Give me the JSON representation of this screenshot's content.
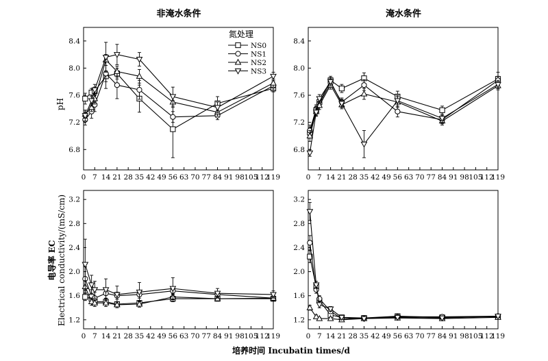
{
  "figure": {
    "x_axis_label": "培养时间 Incubatin times/d",
    "y_label_top": "pH",
    "y_label_bottom_cn": "电导率 EC",
    "y_label_bottom_en": "Electrical conductivity/(mS/cm)",
    "legend_title": "氮处理"
  },
  "chart_data": [
    {
      "type": "line",
      "panel": "top-left",
      "title": "非淹水条件",
      "ylabel": "pH",
      "xlabel": "",
      "x": [
        1,
        5,
        7,
        14,
        21,
        35,
        56,
        84,
        119
      ],
      "x_ticks": [
        0,
        7,
        14,
        21,
        28,
        35,
        42,
        49,
        56,
        63,
        70,
        77,
        84,
        91,
        98,
        105,
        112,
        119
      ],
      "ylim": [
        6.5,
        8.6
      ],
      "y_ticks": [
        6.8,
        7.2,
        7.6,
        8.0,
        8.4
      ],
      "legend": "top-right",
      "series": [
        {
          "name": "NS0",
          "marker": "square",
          "values": [
            7.55,
            7.64,
            7.66,
            7.88,
            7.92,
            7.55,
            7.1,
            7.48,
            7.7
          ],
          "errors": [
            0.08,
            0.06,
            0.06,
            0.08,
            0.08,
            0.2,
            0.42,
            0.1,
            0.05
          ]
        },
        {
          "name": "NS1",
          "marker": "circle",
          "values": [
            7.24,
            7.36,
            7.46,
            7.92,
            7.75,
            7.68,
            7.28,
            7.3,
            7.74
          ],
          "errors": [
            0.08,
            0.1,
            0.1,
            0.22,
            0.2,
            0.14,
            0.08,
            0.06,
            0.06
          ]
        },
        {
          "name": "NS2",
          "marker": "triangle-up",
          "values": [
            7.32,
            7.42,
            7.55,
            8.12,
            7.95,
            7.88,
            7.5,
            7.35,
            7.78
          ],
          "errors": [
            0.06,
            0.06,
            0.08,
            0.08,
            0.08,
            0.1,
            0.08,
            0.06,
            0.06
          ]
        },
        {
          "name": "NS3",
          "marker": "triangle-down",
          "values": [
            7.3,
            7.52,
            7.68,
            8.16,
            8.2,
            8.13,
            7.58,
            7.42,
            7.88
          ],
          "errors": [
            0.08,
            0.08,
            0.08,
            0.22,
            0.15,
            0.1,
            0.14,
            0.08,
            0.06
          ]
        }
      ]
    },
    {
      "type": "line",
      "panel": "top-right",
      "title": "淹水条件",
      "ylabel": "",
      "xlabel": "",
      "x": [
        1,
        5,
        7,
        14,
        21,
        35,
        56,
        84,
        119
      ],
      "x_ticks": [
        0,
        7,
        14,
        21,
        28,
        35,
        42,
        49,
        56,
        63,
        70,
        77,
        84,
        91,
        98,
        105,
        112,
        119
      ],
      "ylim": [
        6.5,
        8.6
      ],
      "y_ticks": [
        6.8,
        7.2,
        7.6,
        8.0,
        8.4
      ],
      "series": [
        {
          "name": "NS0",
          "marker": "square",
          "values": [
            7.05,
            7.38,
            7.5,
            7.82,
            7.7,
            7.85,
            7.58,
            7.38,
            7.84
          ],
          "errors": [
            0.08,
            0.06,
            0.06,
            0.06,
            0.06,
            0.08,
            0.08,
            0.06,
            0.1
          ]
        },
        {
          "name": "NS1",
          "marker": "circle",
          "values": [
            7.08,
            7.4,
            7.48,
            7.78,
            7.5,
            7.75,
            7.36,
            7.24,
            7.82
          ],
          "errors": [
            0.08,
            0.06,
            0.06,
            0.06,
            0.06,
            0.08,
            0.08,
            0.06,
            0.06
          ]
        },
        {
          "name": "NS2",
          "marker": "triangle-up",
          "values": [
            7.0,
            7.36,
            7.45,
            7.75,
            7.46,
            7.62,
            7.5,
            7.22,
            7.74
          ],
          "errors": [
            0.08,
            0.06,
            0.06,
            0.06,
            0.06,
            0.08,
            0.08,
            0.06,
            0.06
          ]
        },
        {
          "name": "NS3",
          "marker": "triangle-down",
          "values": [
            6.75,
            7.35,
            7.55,
            7.8,
            7.48,
            6.88,
            7.52,
            7.26,
            7.76
          ],
          "errors": [
            0.05,
            0.06,
            0.06,
            0.06,
            0.06,
            0.2,
            0.08,
            0.06,
            0.06
          ]
        }
      ]
    },
    {
      "type": "line",
      "panel": "bottom-left",
      "title": "",
      "ylabel": "电导率 EC Electrical conductivity/(mS/cm)",
      "xlabel": "培养时间 Incubatin times/d",
      "x": [
        1,
        5,
        7,
        14,
        21,
        35,
        56,
        84,
        119
      ],
      "x_ticks": [
        0,
        7,
        14,
        21,
        28,
        35,
        42,
        49,
        56,
        63,
        70,
        77,
        84,
        91,
        98,
        105,
        112,
        119
      ],
      "ylim": [
        1.05,
        3.35
      ],
      "y_ticks": [
        1.2,
        1.6,
        2.0,
        2.4,
        2.8,
        3.2
      ],
      "series": [
        {
          "name": "NS0",
          "marker": "square",
          "values": [
            1.58,
            1.55,
            1.5,
            1.5,
            1.46,
            1.48,
            1.55,
            1.55,
            1.55
          ],
          "errors": [
            0.06,
            0.05,
            0.05,
            0.05,
            0.04,
            0.04,
            0.05,
            0.04,
            0.04
          ]
        },
        {
          "name": "NS1",
          "marker": "circle",
          "values": [
            1.88,
            1.6,
            1.56,
            1.64,
            1.6,
            1.62,
            1.68,
            1.62,
            1.56
          ],
          "errors": [
            0.2,
            0.1,
            0.1,
            0.08,
            0.06,
            0.06,
            0.06,
            0.05,
            0.05
          ]
        },
        {
          "name": "NS2",
          "marker": "triangle-up",
          "values": [
            1.75,
            1.5,
            1.48,
            1.48,
            1.45,
            1.46,
            1.58,
            1.55,
            1.56
          ],
          "errors": [
            0.1,
            0.06,
            0.06,
            0.06,
            0.05,
            0.05,
            0.05,
            0.04,
            0.04
          ]
        },
        {
          "name": "NS3",
          "marker": "triangle-down",
          "values": [
            2.12,
            1.78,
            1.7,
            1.7,
            1.62,
            1.66,
            1.72,
            1.64,
            1.62
          ],
          "errors": [
            0.42,
            0.16,
            0.14,
            0.18,
            0.14,
            0.16,
            0.18,
            0.08,
            0.06
          ]
        }
      ]
    },
    {
      "type": "line",
      "panel": "bottom-right",
      "title": "",
      "ylabel": "",
      "xlabel": "培养时间 Incubatin times/d",
      "x": [
        1,
        5,
        7,
        14,
        21,
        35,
        56,
        84,
        119
      ],
      "x_ticks": [
        0,
        7,
        14,
        21,
        28,
        35,
        42,
        49,
        56,
        63,
        70,
        77,
        84,
        91,
        98,
        105,
        112,
        119
      ],
      "ylim": [
        1.05,
        3.35
      ],
      "y_ticks": [
        1.2,
        1.6,
        2.0,
        2.4,
        2.8,
        3.2
      ],
      "series": [
        {
          "name": "NS0",
          "marker": "square",
          "values": [
            2.25,
            1.75,
            1.52,
            1.28,
            1.24,
            1.23,
            1.26,
            1.24,
            1.25
          ],
          "errors": [
            0.1,
            0.06,
            0.05,
            0.03,
            0.02,
            0.02,
            0.02,
            0.02,
            0.02
          ]
        },
        {
          "name": "NS1",
          "marker": "circle",
          "values": [
            2.48,
            1.7,
            1.55,
            1.34,
            1.22,
            1.22,
            1.25,
            1.25,
            1.26
          ],
          "errors": [
            0.12,
            0.06,
            0.05,
            0.03,
            0.02,
            0.02,
            0.02,
            0.02,
            0.02
          ]
        },
        {
          "name": "NS2",
          "marker": "triangle-up",
          "values": [
            1.4,
            1.25,
            1.22,
            1.22,
            1.2,
            1.22,
            1.23,
            1.22,
            1.24
          ],
          "errors": [
            0.04,
            0.03,
            0.02,
            0.02,
            0.02,
            0.02,
            0.02,
            0.02,
            0.02
          ]
        },
        {
          "name": "NS3",
          "marker": "triangle-down",
          "values": [
            3.0,
            1.78,
            1.45,
            1.38,
            1.24,
            1.22,
            1.24,
            1.23,
            1.26
          ],
          "errors": [
            0.15,
            0.06,
            0.05,
            0.04,
            0.02,
            0.02,
            0.02,
            0.02,
            0.02
          ]
        }
      ]
    }
  ]
}
